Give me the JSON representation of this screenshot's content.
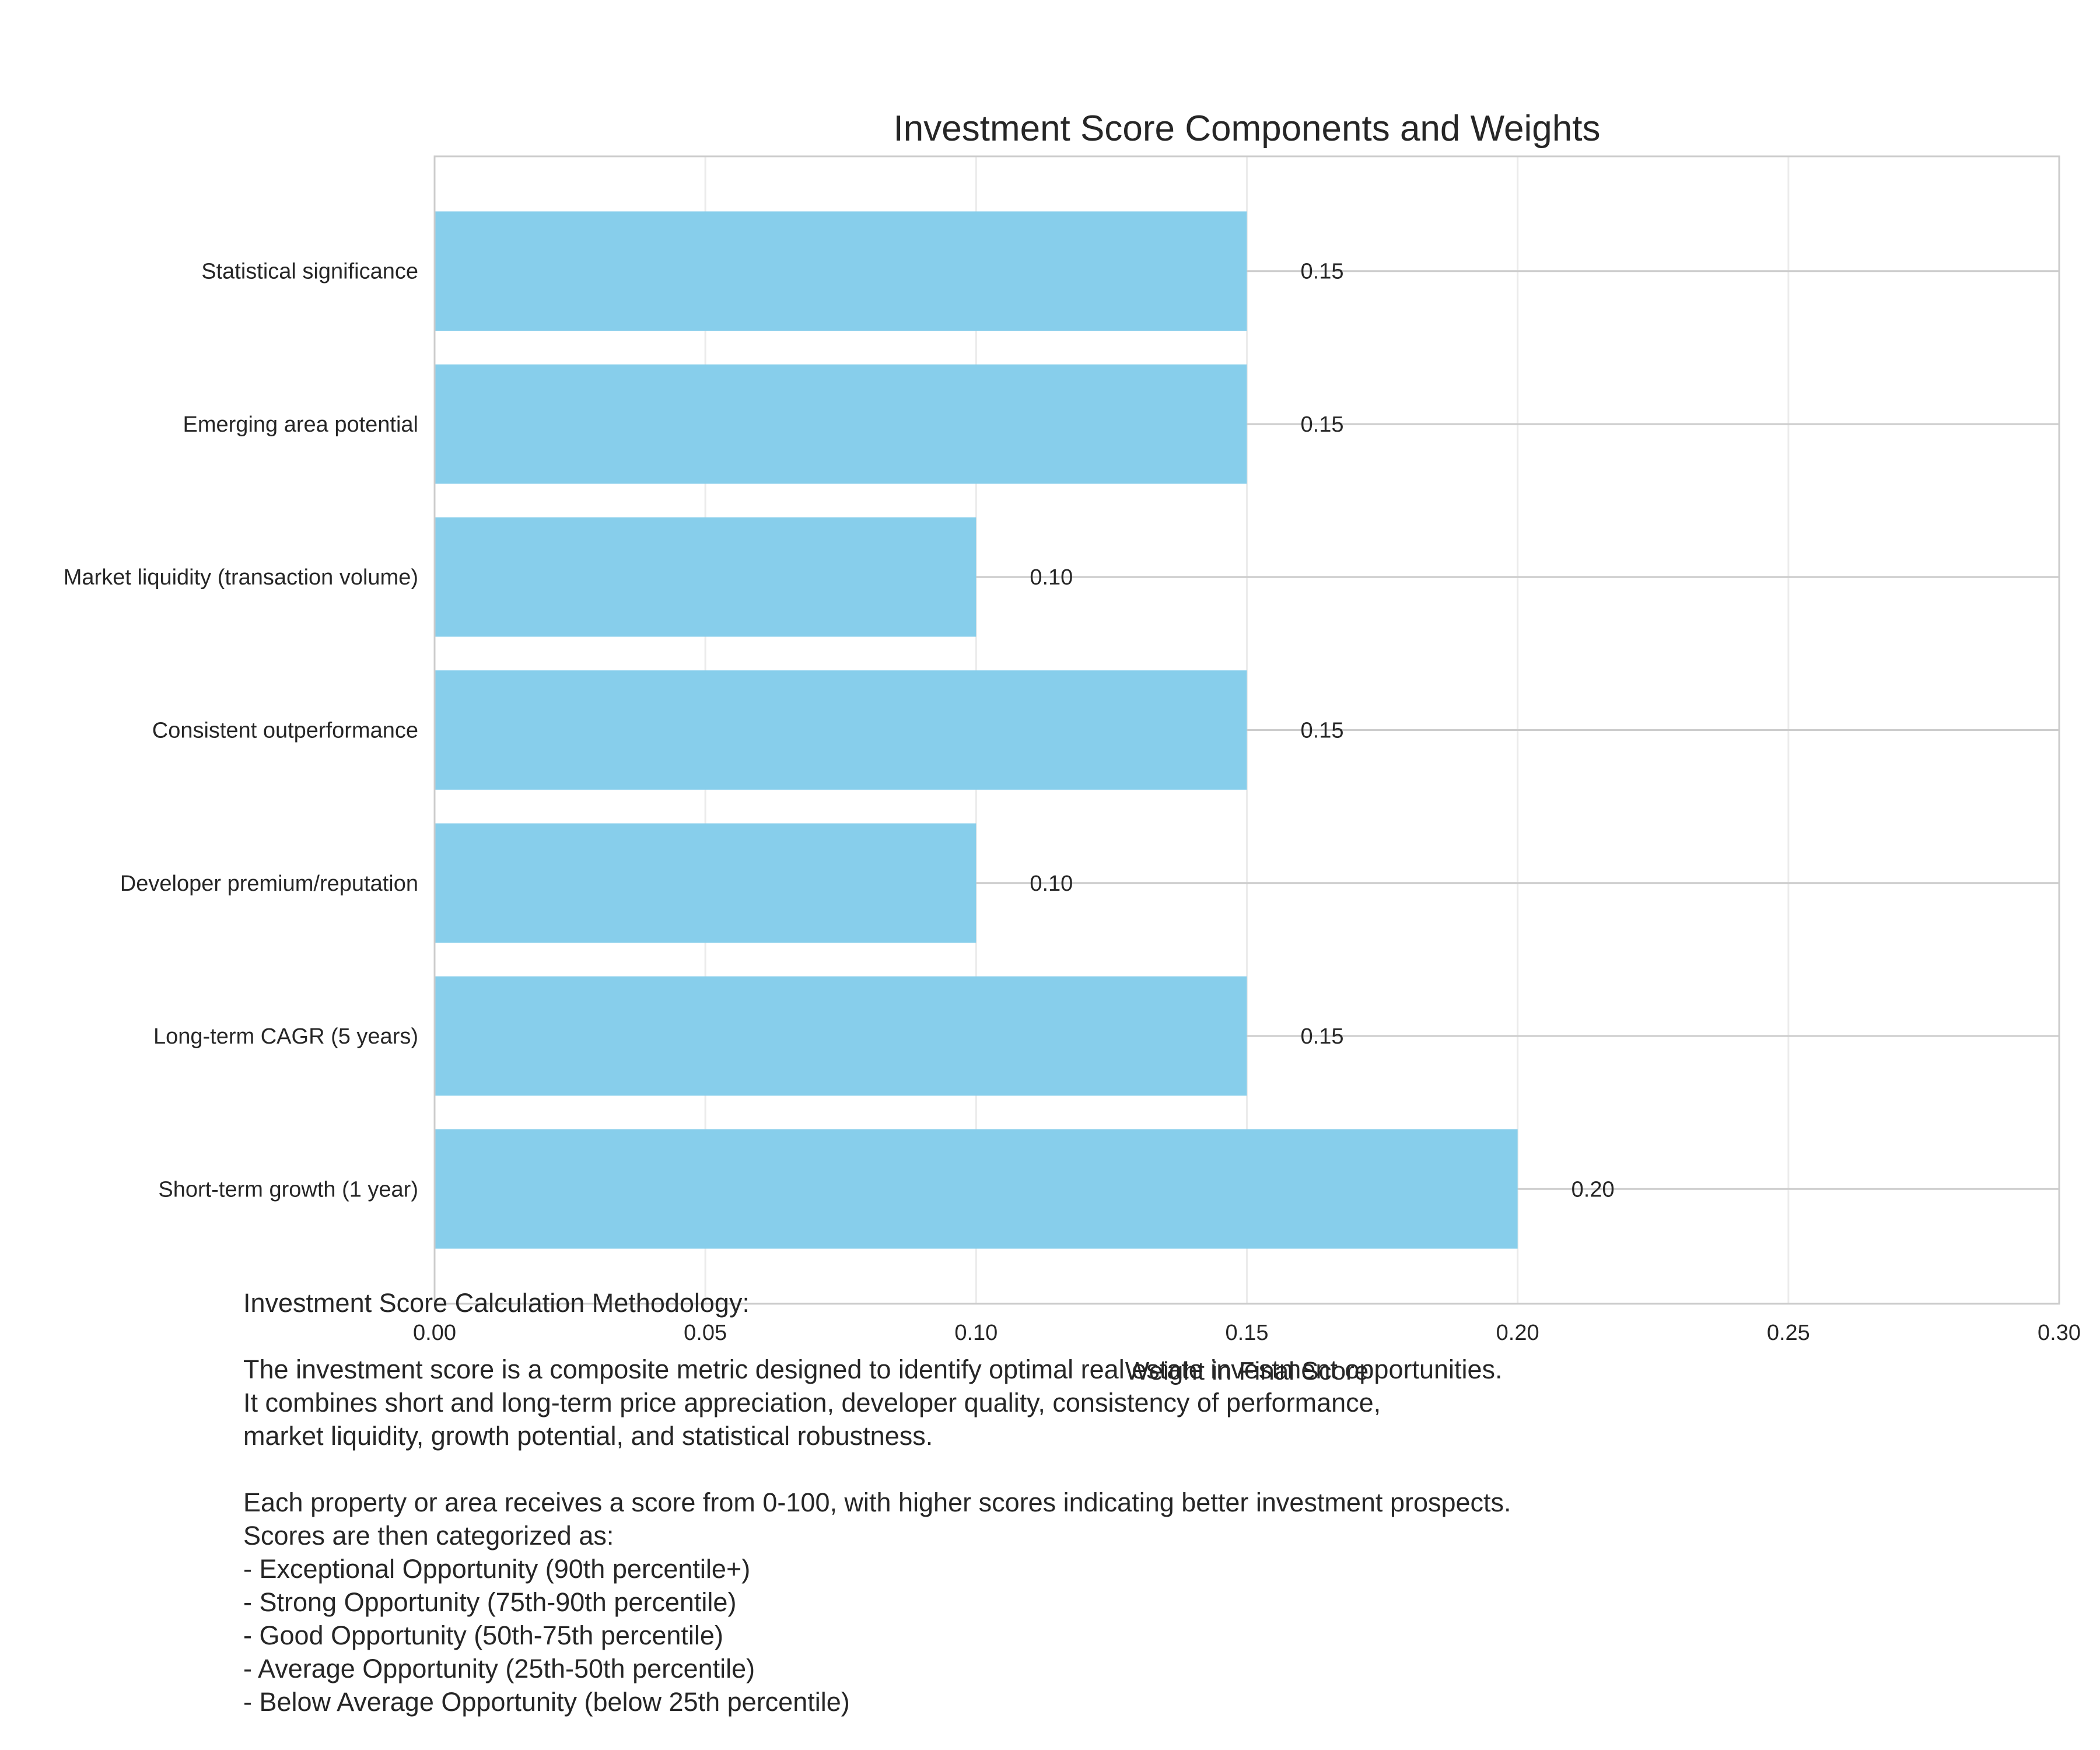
{
  "chart_data": {
    "type": "bar",
    "orientation": "horizontal",
    "title": "Investment Score Components and Weights",
    "xlabel": "Weight in Final Score",
    "ylabel": "",
    "xlim": [
      0,
      0.3
    ],
    "x_ticks": [
      "0.00",
      "0.05",
      "0.10",
      "0.15",
      "0.20",
      "0.25",
      "0.30"
    ],
    "categories": [
      "Short-term growth (1 year)",
      "Long-term CAGR (5 years)",
      "Developer premium/reputation",
      "Consistent outperformance",
      "Market liquidity (transaction volume)",
      "Emerging area potential",
      "Statistical significance"
    ],
    "values": [
      0.2,
      0.15,
      0.1,
      0.15,
      0.1,
      0.15,
      0.15
    ],
    "data_labels": [
      "0.20",
      "0.15",
      "0.10",
      "0.15",
      "0.10",
      "0.15",
      "0.15"
    ],
    "bar_color": "#87ceeb",
    "grid": true
  },
  "methodology": {
    "lines": [
      "Investment Score Calculation Methodology:",
      "",
      "The investment score is a composite metric designed to identify optimal real estate investment opportunities.",
      "It combines short and long-term price appreciation, developer quality, consistency of performance,",
      "market liquidity, growth potential, and statistical robustness.",
      "",
      "Each property or area receives a score from 0-100, with higher scores indicating better investment prospects.",
      "Scores are then categorized as:",
      "- Exceptional Opportunity (90th percentile+)",
      "- Strong Opportunity (75th-90th percentile)",
      "- Good Opportunity (50th-75th percentile)",
      "- Average Opportunity (25th-50th percentile)",
      "- Below Average Opportunity (below 25th percentile)"
    ]
  }
}
